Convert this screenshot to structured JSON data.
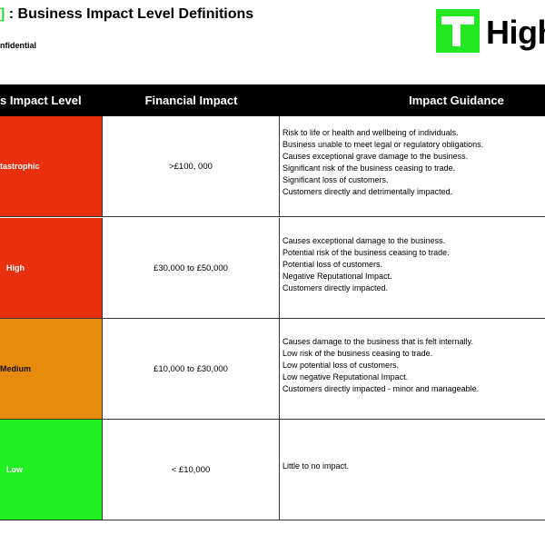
{
  "header": {
    "bracket": "]",
    "title": ": Business Impact Level Definitions",
    "classification": "nfidential",
    "logo_text": "High"
  },
  "table": {
    "columns": [
      "s Impact Level",
      "Financial Impact",
      "Impact Guidance"
    ],
    "rows": [
      {
        "level": "tastrophic",
        "color": "#e8300e",
        "text_color": "#ffffff",
        "financial": ">£100, 000",
        "guidance": [
          "Risk to life or health and wellbeing of individuals.",
          "Business unable to meet legal or regulatory obligations.",
          "Causes exceptional grave damage to the business.",
          "Significant risk of the business ceasing to trade.",
          "Significant loss of customers.",
          "Customers directly and detrimentally  impacted."
        ]
      },
      {
        "level": "High",
        "color": "#e8300e",
        "text_color": "#ffffff",
        "financial": "£30,000 to £50,000",
        "guidance": [
          "Causes exceptional damage to the business.",
          "Potential risk of the business ceasing to trade.",
          "Potential loss of customers.",
          "Negative Reputational Impact.",
          "Customers directly impacted."
        ]
      },
      {
        "level": "Medium",
        "color": "#e88a0c",
        "text_color": "#111111",
        "financial": "£10,000 to £30,000",
        "guidance": [
          "Causes damage to the business that is felt internally.",
          "Low risk of the business ceasing to trade.",
          "Low potential loss of customers.",
          "Low negative Reputational Impact.",
          "Customers directly impacted - minor and manageable."
        ]
      },
      {
        "level": "Low",
        "color": "#1ff01f",
        "text_color": "#ffffff",
        "financial": "< £10,000",
        "guidance": [
          "Little to no impact."
        ]
      }
    ]
  }
}
